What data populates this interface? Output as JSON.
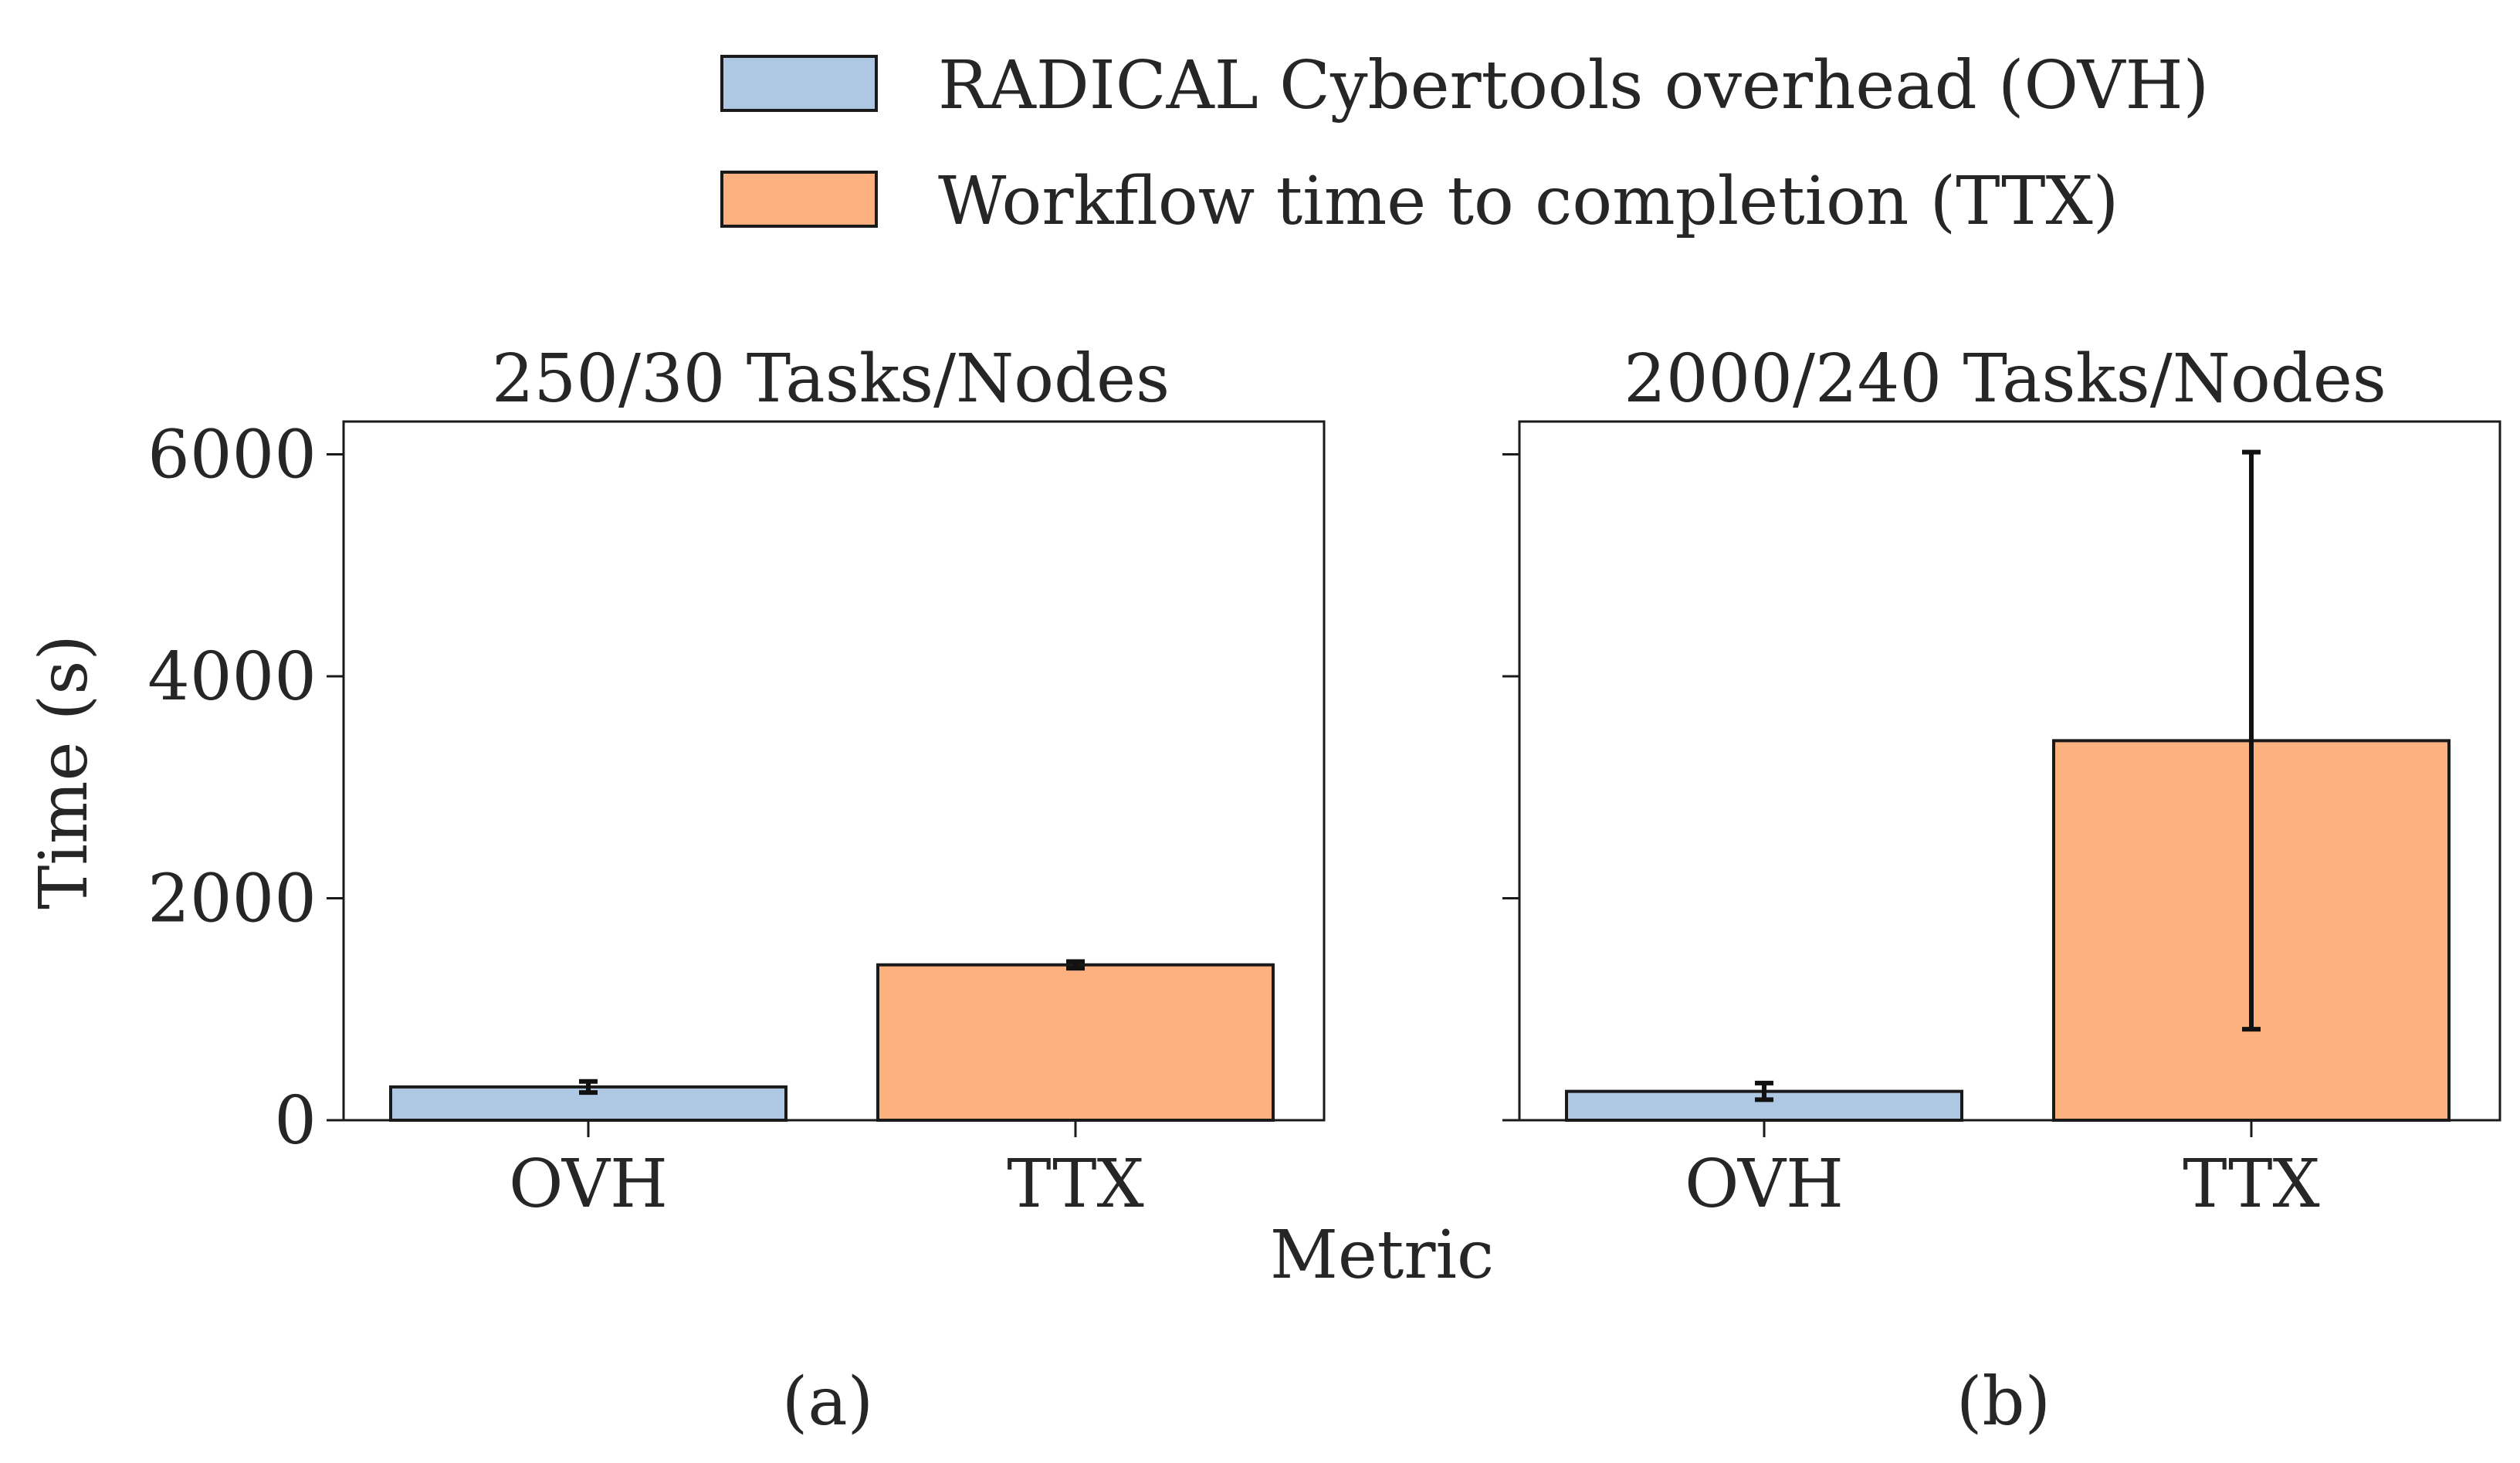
{
  "figure": {
    "xlabel": "Metric",
    "ylabel": "Time (s)",
    "panel_labels": [
      "(a)",
      "(b)"
    ]
  },
  "legend": {
    "placement": "top-center",
    "items": [
      {
        "label": "RADICAL Cybertools overhead (OVH)",
        "color": "#aec8e4"
      },
      {
        "label": "Workflow time to completion (TTX)",
        "color": "#fdb17f"
      }
    ]
  },
  "chart_data": [
    {
      "type": "bar",
      "title": "250/30 Tasks/Nodes",
      "categories": [
        "OVH",
        "TTX"
      ],
      "values": [
        300,
        1400
      ],
      "error": [
        50,
        30
      ],
      "colors": [
        "#aec8e4",
        "#fdb17f"
      ],
      "ylabel": "Time (s)",
      "ylim": [
        0,
        6300
      ],
      "yticks": [
        0,
        2000,
        4000,
        6000
      ],
      "yticklabels": [
        "0",
        "2000",
        "4000",
        "6000"
      ],
      "grid": false
    },
    {
      "type": "bar",
      "title": "2000/240 Tasks/Nodes",
      "categories": [
        "OVH",
        "TTX"
      ],
      "values": [
        260,
        3420
      ],
      "error": [
        75,
        2600
      ],
      "colors": [
        "#aec8e4",
        "#fdb17f"
      ],
      "ylim": [
        0,
        6300
      ],
      "yticks": [
        0,
        2000,
        4000,
        6000
      ],
      "yticklabels": [
        "",
        "",
        "",
        ""
      ],
      "grid": false
    }
  ]
}
